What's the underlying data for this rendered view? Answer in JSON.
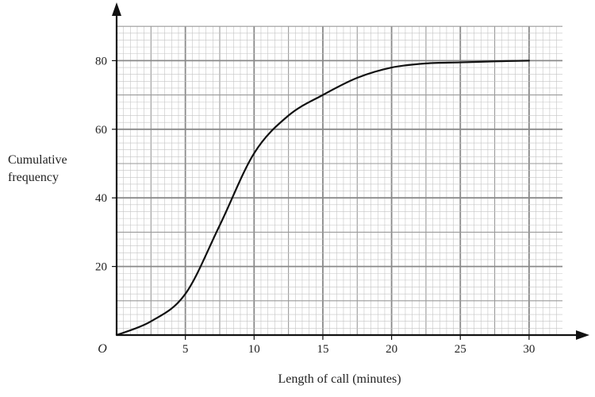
{
  "chart_data": {
    "type": "line",
    "title": "",
    "xlabel": "Length of call (minutes)",
    "ylabel_lines": [
      "Cumulative",
      "frequency"
    ],
    "origin_label": "O",
    "xlim": [
      0,
      32.5
    ],
    "ylim": [
      0,
      90
    ],
    "xticks": [
      {
        "value": 5,
        "label": "5"
      },
      {
        "value": 10,
        "label": "10"
      },
      {
        "value": 15,
        "label": "15"
      },
      {
        "value": 20,
        "label": "20"
      },
      {
        "value": 25,
        "label": "25"
      },
      {
        "value": 30,
        "label": "30"
      }
    ],
    "yticks": [
      {
        "value": 20,
        "label": "20"
      },
      {
        "value": 40,
        "label": "40"
      },
      {
        "value": 60,
        "label": "60"
      },
      {
        "value": 80,
        "label": "80"
      }
    ],
    "grid": {
      "minor_x": 0.5,
      "medium_x": 2.5,
      "major_x": 5,
      "minor_y": 2,
      "medium_y": 10,
      "major_y": 20
    },
    "colors": {
      "grid_minor": "#c4c4c4",
      "grid_medium": "#9a9a9a",
      "grid_major": "#8a8a8a",
      "curve": "#111111",
      "axis": "#111111"
    },
    "series": [
      {
        "x": [
          0,
          2.5,
          5,
          7.5,
          10,
          12.5,
          15,
          17.5,
          20,
          22.5,
          25,
          27.5,
          30
        ],
        "y": [
          0,
          4,
          12,
          32,
          53,
          64,
          70,
          75,
          78,
          79.2,
          79.5,
          79.8,
          80
        ]
      }
    ]
  }
}
